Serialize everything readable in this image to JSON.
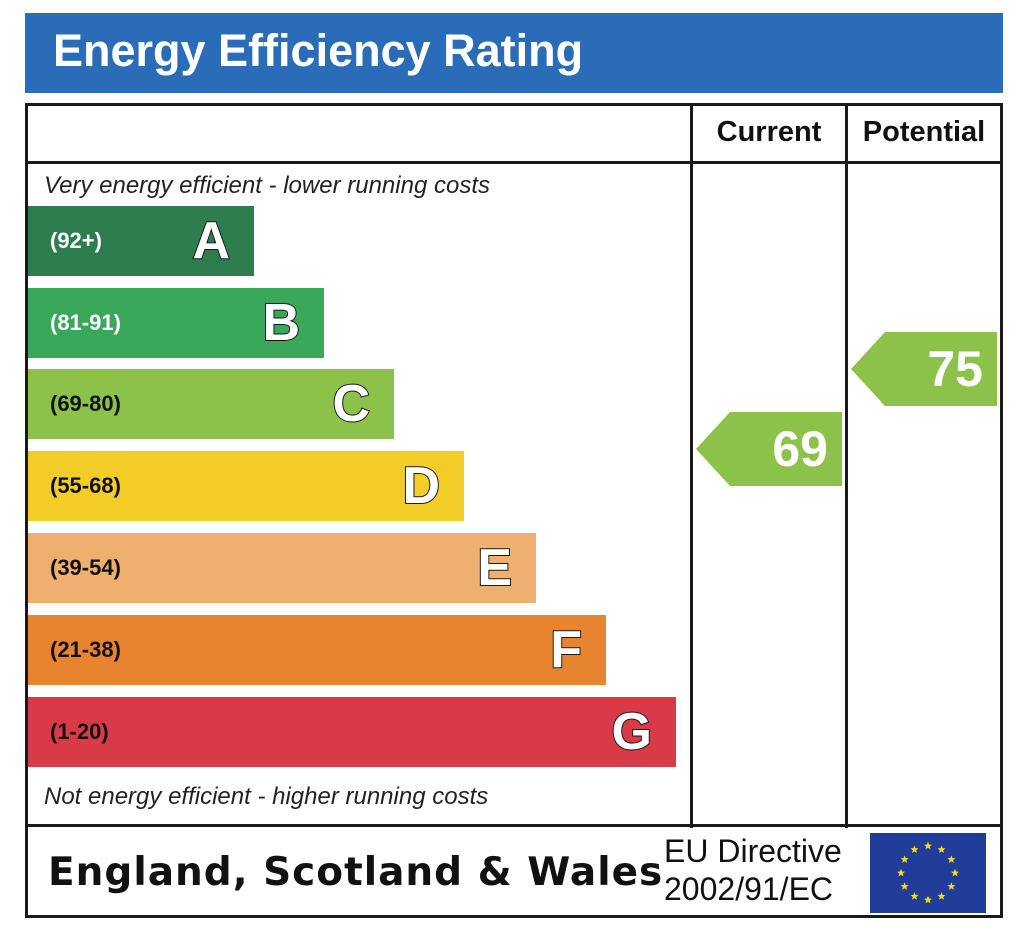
{
  "header": {
    "title": "Energy Efficiency Rating"
  },
  "columns": {
    "current": "Current",
    "potential": "Potential"
  },
  "notes": {
    "top": "Very energy efficient - lower running costs",
    "bottom": "Not energy efficient - higher running costs"
  },
  "bands": [
    {
      "letter": "A",
      "range": "(92+)",
      "color": "#2e7d4f",
      "range_color": "#ffffff"
    },
    {
      "letter": "B",
      "range": "(81-91)",
      "color": "#3aa85a",
      "range_color": "#ffffff"
    },
    {
      "letter": "C",
      "range": "(69-80)",
      "color": "#8cc24a",
      "range_color": "#111111"
    },
    {
      "letter": "D",
      "range": "(55-68)",
      "color": "#f2cd28",
      "range_color": "#111111"
    },
    {
      "letter": "E",
      "range": "(39-54)",
      "color": "#efaf6e",
      "range_color": "#111111"
    },
    {
      "letter": "F",
      "range": "(21-38)",
      "color": "#e8842f",
      "range_color": "#111111"
    },
    {
      "letter": "G",
      "range": "(1-20)",
      "color": "#d93a47",
      "range_color": "#111111"
    }
  ],
  "ratings": {
    "current": {
      "value": "69",
      "band": "C",
      "color": "#8cc24a"
    },
    "potential": {
      "value": "75",
      "band": "C",
      "color": "#8cc24a"
    }
  },
  "footer": {
    "country": "England, Scotland & Wales",
    "directive_line1": "EU Directive",
    "directive_line2": "2002/91/EC",
    "flag_icon": "eu-flag-icon"
  }
}
